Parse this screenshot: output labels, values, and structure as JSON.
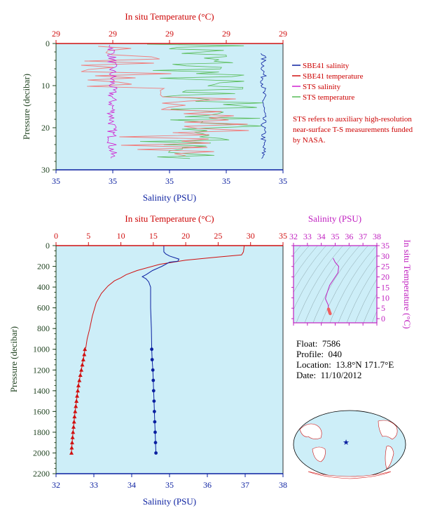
{
  "colors": {
    "background": "#cdeef8",
    "salinity": "#0a1fa0",
    "temperature": "#d01010",
    "sts_salinity": "#d020d0",
    "sts_temperature": "#55bb55",
    "pressure_axis": "#224422",
    "ts_axis": "#c020c0"
  },
  "chart_data": [
    {
      "id": "near-surface-profile",
      "type": "line",
      "top_xlabel": "In situ Temperature (°C)",
      "top_ticks": [
        "29",
        "29",
        "29",
        "29",
        "29"
      ],
      "bottom_xlabel": "Salinity (PSU)",
      "bottom_ticks": [
        "35",
        "35",
        "35",
        "35",
        "35"
      ],
      "ylabel": "Pressure (decibar)",
      "ylim": [
        30,
        0
      ],
      "yticks": [
        0,
        10,
        20,
        30
      ],
      "legend": [
        {
          "name": "SBE41 salinity",
          "color": "#0a1fa0"
        },
        {
          "name": "SBE41 temperature",
          "color": "#d01010"
        },
        {
          "name": "STS salinity",
          "color": "#d020d0"
        },
        {
          "name": "STS temperature",
          "color": "#55bb55"
        }
      ],
      "note": "STS refers to auxiliary high-resolution near-surface T-S measurements funded by NASA."
    },
    {
      "id": "full-depth-profile",
      "type": "line",
      "top_xlabel": "In situ Temperature (°C)",
      "xlim_temperature": [
        0,
        35
      ],
      "temperature_ticks": [
        0,
        5,
        10,
        15,
        20,
        25,
        30,
        35
      ],
      "bottom_xlabel": "Salinity (PSU)",
      "xlim_salinity": [
        32,
        38
      ],
      "salinity_ticks": [
        32,
        33,
        34,
        35,
        36,
        37,
        38
      ],
      "ylabel": "Pressure (decibar)",
      "ylim": [
        2200,
        0
      ],
      "yticks": [
        0,
        200,
        400,
        600,
        800,
        1000,
        1200,
        1400,
        1600,
        1800,
        2000,
        2200
      ],
      "series": [
        {
          "name": "Temperature",
          "color": "#d01010",
          "points": [
            [
              29.0,
              0
            ],
            [
              29.0,
              10
            ],
            [
              28.9,
              60
            ],
            [
              28.6,
              90
            ],
            [
              25,
              110
            ],
            [
              20,
              140
            ],
            [
              16,
              180
            ],
            [
              12.5,
              240
            ],
            [
              10.8,
              280
            ],
            [
              10,
              310
            ],
            [
              9,
              340
            ],
            [
              8,
              390
            ],
            [
              7,
              460
            ],
            [
              6.2,
              550
            ],
            [
              5.6,
              680
            ],
            [
              5.2,
              800
            ],
            [
              4.8,
              900
            ],
            [
              4.6,
              980
            ],
            [
              4.45,
              1000
            ],
            [
              4.35,
              1050
            ],
            [
              4.2,
              1100
            ],
            [
              4.05,
              1150
            ],
            [
              3.9,
              1200
            ],
            [
              3.75,
              1250
            ],
            [
              3.6,
              1300
            ],
            [
              3.45,
              1350
            ],
            [
              3.35,
              1400
            ],
            [
              3.25,
              1450
            ],
            [
              3.15,
              1500
            ],
            [
              3.05,
              1550
            ],
            [
              2.95,
              1600
            ],
            [
              2.85,
              1650
            ],
            [
              2.78,
              1700
            ],
            [
              2.7,
              1750
            ],
            [
              2.62,
              1800
            ],
            [
              2.55,
              1850
            ],
            [
              2.48,
              1900
            ],
            [
              2.42,
              1950
            ],
            [
              2.38,
              2000
            ]
          ],
          "marker_start_pressure": 1000
        },
        {
          "name": "Salinity",
          "color": "#0a1fa0",
          "points": [
            [
              34.85,
              0
            ],
            [
              34.85,
              60
            ],
            [
              34.9,
              80
            ],
            [
              35.0,
              100
            ],
            [
              35.25,
              130
            ],
            [
              35.22,
              150
            ],
            [
              35.0,
              160
            ],
            [
              34.8,
              200
            ],
            [
              34.55,
              240
            ],
            [
              34.38,
              280
            ],
            [
              34.28,
              300
            ],
            [
              34.38,
              320
            ],
            [
              34.45,
              350
            ],
            [
              34.5,
              400
            ],
            [
              34.5,
              600
            ],
            [
              34.52,
              800
            ],
            [
              34.53,
              1000
            ],
            [
              34.54,
              1100
            ],
            [
              34.56,
              1200
            ],
            [
              34.57,
              1300
            ],
            [
              34.58,
              1400
            ],
            [
              34.59,
              1500
            ],
            [
              34.6,
              1600
            ],
            [
              34.61,
              1700
            ],
            [
              34.62,
              1800
            ],
            [
              34.63,
              1900
            ],
            [
              34.64,
              2000
            ]
          ],
          "marker_start_pressure": 1000
        }
      ]
    },
    {
      "id": "ts-diagram",
      "type": "scatter",
      "top_xlabel": "Salinity (PSU)",
      "xlim": [
        32,
        38
      ],
      "xticks": [
        32,
        33,
        34,
        35,
        36,
        37,
        38
      ],
      "right_ylabel": "In situ Temperature (°C)",
      "ylim": [
        -2,
        35
      ],
      "yticks": [
        0,
        5,
        10,
        15,
        20,
        25,
        30,
        35
      ],
      "series": [
        {
          "name": "T-S curve",
          "points": [
            [
              34.85,
              29
            ],
            [
              35.0,
              27
            ],
            [
              35.25,
              25
            ],
            [
              35.2,
              22
            ],
            [
              34.9,
              19
            ],
            [
              34.6,
              16
            ],
            [
              34.45,
              13
            ],
            [
              34.35,
              11
            ],
            [
              34.3,
              9.5
            ],
            [
              34.4,
              8
            ],
            [
              34.5,
              6.5
            ],
            [
              34.5,
              5.5
            ],
            [
              34.52,
              4.6
            ],
            [
              34.55,
              4
            ],
            [
              34.58,
              3.4
            ],
            [
              34.61,
              2.8
            ],
            [
              34.64,
              2.4
            ]
          ]
        }
      ]
    }
  ],
  "metadata": {
    "float_label": "Float:",
    "float_value": "7586",
    "profile_label": "Profile:",
    "profile_value": "040",
    "location_label": "Location:",
    "location_value": "13.8°N  171.7°E",
    "date_label": "Date:",
    "date_value": "11/10/2012"
  }
}
